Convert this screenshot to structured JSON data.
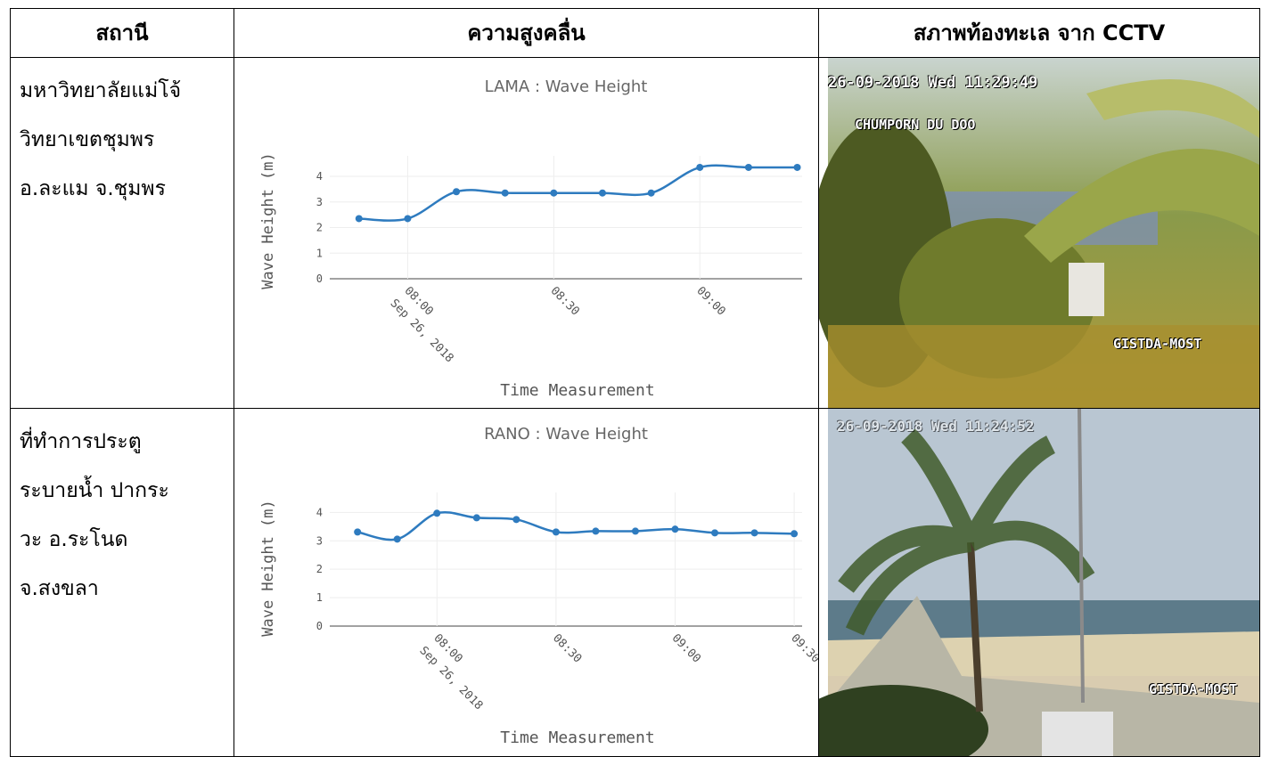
{
  "table": {
    "header": [
      "สถานี",
      "ความสูงคลื่น",
      "สภาพท้องทะเล จาก CCTV"
    ],
    "rows": [
      {
        "station": [
          "มหาวิทยาลัยแม่โจ้",
          "วิทยาเขตชุมพร",
          "อ.ละแม จ.ชุมพร"
        ],
        "cctv": {
          "timestamp": "26-09-2018 Wed 11:29:49",
          "camera": "CHUMPORN DU DOO",
          "watermark": "GISTDA-MOST"
        }
      },
      {
        "station": [
          "ที่ทำการประตู",
          "ระบายน้ำ ปากระ",
          "วะ อ.ระโนด",
          "จ.สงขลา"
        ],
        "cctv": {
          "timestamp": "26-09-2018 Wed 11:24:52",
          "watermark": "GISTDA-MOST"
        }
      }
    ]
  },
  "chart_data": [
    {
      "type": "line",
      "title": "LAMA : Wave Height",
      "x_label": "Time Measurement",
      "y_label": "Wave Height (m)",
      "x": [
        "2018-09-26T07:50",
        "2018-09-26T08:00",
        "2018-09-26T08:10",
        "2018-09-26T08:20",
        "2018-09-26T08:30",
        "2018-09-26T08:40",
        "2018-09-26T08:50",
        "2018-09-26T09:00",
        "2018-09-26T09:10",
        "2018-09-26T09:20"
      ],
      "values": [
        2.35,
        2.35,
        3.4,
        3.35,
        3.35,
        3.35,
        3.35,
        4.35,
        4.35,
        4.35
      ],
      "color": "#2e7bbf",
      "xlim": [
        "2018-09-26T07:44",
        "2018-09-26T09:21"
      ],
      "xticks": [
        {
          "value": "2018-09-26T08:00",
          "label": "08:00"
        },
        {
          "value": "2018-09-26T08:30",
          "label": "08:30"
        },
        {
          "value": "2018-09-26T09:00",
          "label": "09:00"
        }
      ],
      "x_date": "Sep 26, 2018",
      "ylim": [
        0,
        4.8
      ],
      "yticks": [
        0,
        1,
        2,
        3,
        4
      ],
      "grid": true
    },
    {
      "type": "line",
      "title": "RANO : Wave Height",
      "x_label": "Time Measurement",
      "y_label": "Wave Height (m)",
      "x": [
        "2018-09-26T07:40",
        "2018-09-26T07:50",
        "2018-09-26T08:00",
        "2018-09-26T08:10",
        "2018-09-26T08:20",
        "2018-09-26T08:30",
        "2018-09-26T08:40",
        "2018-09-26T08:50",
        "2018-09-26T09:00",
        "2018-09-26T09:10",
        "2018-09-26T09:20",
        "2018-09-26T09:30"
      ],
      "values": [
        3.31,
        3.06,
        3.97,
        3.81,
        3.75,
        3.31,
        3.34,
        3.34,
        3.41,
        3.28,
        3.28,
        3.25
      ],
      "color": "#2e7bbf",
      "xlim": [
        "2018-09-26T07:33",
        "2018-09-26T09:32"
      ],
      "xticks": [
        {
          "value": "2018-09-26T08:00",
          "label": "08:00"
        },
        {
          "value": "2018-09-26T08:30",
          "label": "08:30"
        },
        {
          "value": "2018-09-26T09:00",
          "label": "09:00"
        },
        {
          "value": "2018-09-26T09:30",
          "label": "09:30"
        }
      ],
      "x_date": "Sep 26, 2018",
      "ylim": [
        0,
        4.7
      ],
      "yticks": [
        0,
        1,
        2,
        3,
        4
      ],
      "grid": true
    }
  ]
}
